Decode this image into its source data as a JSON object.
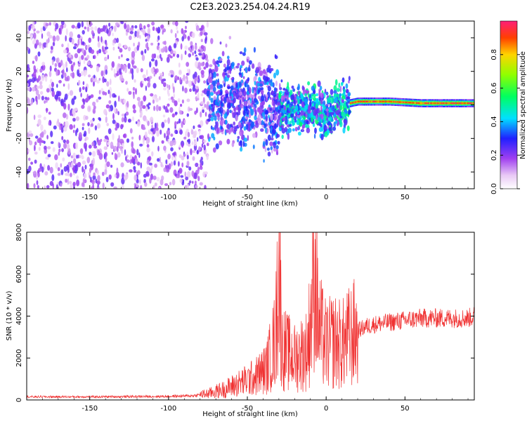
{
  "title": "C2E3.2023.254.04.24.R19",
  "colors": {
    "snr_line": "#f03232",
    "axis": "#000000"
  },
  "chart_data": [
    {
      "type": "heatmap",
      "xlabel": "Height of straight line (km)",
      "ylabel": "Frequency (Hz)",
      "xlim": [
        -190,
        94
      ],
      "ylim": [
        -50,
        50
      ],
      "xticks": [
        -150,
        -100,
        -50,
        0,
        50
      ],
      "xtick_labels": [
        "-150",
        "-100",
        "-50",
        "0",
        "50"
      ],
      "yticks": [
        -40,
        -20,
        0,
        20,
        40
      ],
      "ytick_labels": [
        "-40",
        "-20",
        "0",
        "20",
        "40"
      ],
      "colorbar": {
        "label": "Normalized spectral amplitude",
        "range": [
          0,
          1
        ],
        "ticks": [
          0.0,
          0.2,
          0.4,
          0.6,
          0.8
        ],
        "tick_labels": [
          "0.0",
          "0.2",
          "0.4",
          "0.6",
          "0.8"
        ],
        "colormap": "gist_ncar_r"
      },
      "description_regions": [
        {
          "x_range": [
            -190,
            -75
          ],
          "freq_range": [
            -50,
            50
          ],
          "amplitude": [
            0.05,
            0.25
          ]
        },
        {
          "x_range": [
            -75,
            -30
          ],
          "freq_range": [
            -30,
            30
          ],
          "amplitude": [
            0.1,
            0.4
          ]
        },
        {
          "x_range": [
            -30,
            15
          ],
          "freq_range": [
            -15,
            15
          ],
          "amplitude": [
            0.15,
            0.55
          ]
        },
        {
          "x_range": [
            15,
            94
          ],
          "freq_range": [
            0,
            3
          ],
          "amplitude": [
            0.5,
            1.0
          ]
        }
      ],
      "ridge": [
        {
          "x": -50,
          "f": 4
        },
        {
          "x": -30,
          "f": -4
        },
        {
          "x": -15,
          "f": -2
        },
        {
          "x": 0,
          "f": -5
        },
        {
          "x": 10,
          "f": 0
        },
        {
          "x": 20,
          "f": 2
        },
        {
          "x": 40,
          "f": 2
        },
        {
          "x": 60,
          "f": 1
        },
        {
          "x": 94,
          "f": 1
        }
      ]
    },
    {
      "type": "line",
      "xlabel": "Height of straight line (km)",
      "ylabel": "SNR (10 * v/v)",
      "xlim": [
        -190,
        94
      ],
      "ylim": [
        0,
        8000
      ],
      "xticks": [
        -150,
        -100,
        -50,
        0,
        50
      ],
      "xtick_labels": [
        "-150",
        "-100",
        "-50",
        "0",
        "50"
      ],
      "yticks": [
        0,
        2000,
        4000,
        6000,
        8000
      ],
      "ytick_labels": [
        "0",
        "2000",
        "4000",
        "6000",
        "8000"
      ],
      "series": [
        {
          "name": "SNR",
          "x": [
            -190,
            -150,
            -100,
            -85,
            -75,
            -65,
            -55,
            -45,
            -38,
            -35,
            -32,
            -30,
            -28,
            -20,
            -12,
            -9,
            -8,
            -5,
            0,
            5,
            10,
            15,
            20,
            25,
            30,
            40,
            50,
            60,
            70,
            80,
            90,
            94
          ],
          "y": [
            150,
            150,
            170,
            200,
            300,
            500,
            800,
            1100,
            1500,
            2200,
            3000,
            7200,
            2500,
            2000,
            2400,
            4500,
            8000,
            3500,
            2600,
            2800,
            2600,
            3000,
            3300,
            3500,
            3600,
            3700,
            3800,
            3900,
            3900,
            3900,
            3900,
            4000
          ]
        }
      ]
    }
  ]
}
